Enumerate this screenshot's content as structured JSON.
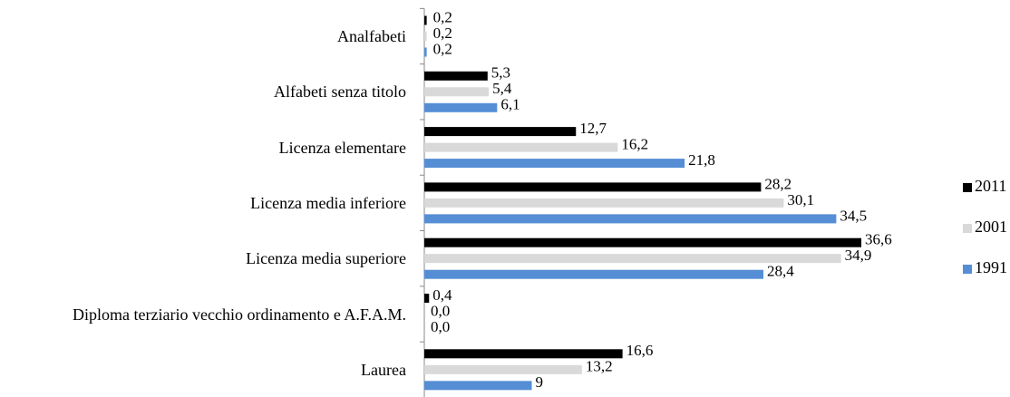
{
  "chart_data": {
    "type": "hbar",
    "categories": [
      "Analfabeti",
      "Alfabeti senza titolo",
      "Licenza elementare",
      "Licenza media inferiore",
      "Licenza media superiore",
      "Diploma terziario vecchio ordinamento e A.F.A.M.",
      "Laurea"
    ],
    "series": [
      {
        "name": "2011",
        "color": "#000000",
        "values": [
          0.2,
          5.3,
          12.7,
          28.2,
          36.6,
          0.4,
          16.6
        ],
        "value_labels": [
          "0,2",
          "5,3",
          "12,7",
          "28,2",
          "36,6",
          "0,4",
          "16,6"
        ]
      },
      {
        "name": "2001",
        "color": "#d9d9d9",
        "values": [
          0.2,
          5.4,
          16.2,
          30.1,
          34.9,
          0.0,
          13.2
        ],
        "value_labels": [
          "0,2",
          "5,4",
          "16,2",
          "30,1",
          "34,9",
          "0,0",
          "13,2"
        ]
      },
      {
        "name": "1991",
        "color": "#558ed5",
        "values": [
          0.2,
          6.1,
          21.8,
          34.5,
          28.4,
          0.0,
          9
        ],
        "value_labels": [
          "0,2",
          "6,1",
          "21,8",
          "34,5",
          "28,4",
          "0,0",
          "9"
        ]
      }
    ],
    "legend": "right"
  }
}
